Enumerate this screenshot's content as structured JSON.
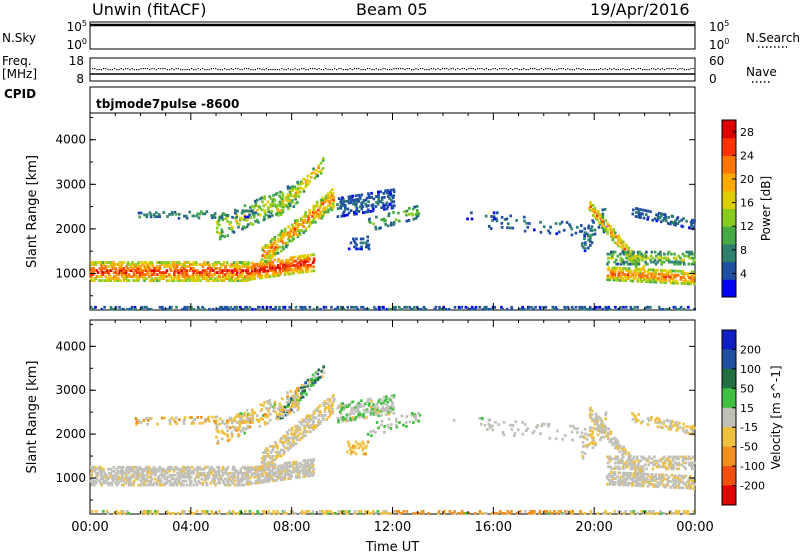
{
  "header": {
    "station": "Unwin (fitACF)",
    "beam": "Beam 05",
    "date": "19/Apr/2016"
  },
  "strips": {
    "nsky_label": "N.Sky",
    "nsearch_label": "N.Search",
    "nsky_ticks": [
      "10^5",
      "10^0"
    ],
    "nsearch_ticks": [
      "10^5",
      "10^0"
    ],
    "freq_label_top": "Freq.",
    "freq_label_bottom": "[MHz]",
    "freq_ticks": [
      "18",
      "8"
    ],
    "nave_label": "Nave",
    "nave_ticks": [
      "60",
      "0"
    ],
    "cpid_label": "CPID",
    "cpid_value": "tbjmode7pulse  -8600"
  },
  "colors": {
    "power_scale": [
      "#0000ff",
      "#1e4fa0",
      "#2f7f6f",
      "#44aa44",
      "#88cc22",
      "#ddcc00",
      "#ffaa00",
      "#ff7700",
      "#ff3300",
      "#dd0000"
    ],
    "velocity_scale": [
      "#1020c0",
      "#2050a0",
      "#207040",
      "#40c040",
      "#c0c0b8",
      "#f0c040",
      "#f09020",
      "#f05010",
      "#e00000"
    ]
  },
  "chart_data": [
    {
      "type": "heatmap",
      "title": "Power",
      "xlabel": "Time UT",
      "ylabel": "Slant Range [km]",
      "xlim": [
        "00:00",
        "00:00"
      ],
      "x_ticks": [
        "00:00",
        "04:00",
        "08:00",
        "12:00",
        "16:00",
        "20:00",
        "00:00"
      ],
      "ylim": [
        180,
        4600
      ],
      "y_ticks": [
        1000,
        2000,
        3000,
        4000
      ],
      "colorbar_label": "Power [dB]",
      "colorbar_ticks": [
        4,
        8,
        12,
        16,
        20,
        24,
        28
      ],
      "colorbar_range": [
        0,
        30
      ]
    },
    {
      "type": "heatmap",
      "title": "Velocity",
      "xlabel": "Time UT",
      "ylabel": "Slant Range [km]",
      "xlim": [
        "00:00",
        "00:00"
      ],
      "x_ticks": [
        "00:00",
        "04:00",
        "08:00",
        "12:00",
        "16:00",
        "20:00",
        "00:00"
      ],
      "ylim": [
        180,
        4600
      ],
      "y_ticks": [
        1000,
        2000,
        3000,
        4000
      ],
      "colorbar_label": "Velocity [m s^-1]",
      "colorbar_ticks": [
        200,
        100,
        50,
        15,
        -15,
        -50,
        -100,
        -200
      ]
    }
  ],
  "axis": {
    "x_title": "Time UT"
  }
}
